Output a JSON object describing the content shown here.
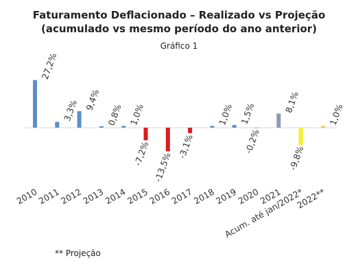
{
  "header": {
    "title_line1": "Faturamento Deflacionado – Realizado vs Projeção",
    "title_line2": "(acumulado vs mesmo período do ano anterior)",
    "subtitle": "Gráfico 1"
  },
  "footnote": "** Projeção",
  "colors": {
    "realizado": "#5b8fc7",
    "negativo": "#d91e1e",
    "ano_2021": "#8a9bb5",
    "acumulado": "#f5f02a",
    "projecao": "#e8c35a",
    "eixo": "#d9d9d9"
  },
  "chart_data": {
    "type": "bar",
    "title": "Faturamento Deflacionado – Realizado vs Projeção (acumulado vs mesmo período do ano anterior)",
    "subtitle": "Gráfico 1",
    "xlabel": "",
    "ylabel": "",
    "grid": false,
    "legend": "none",
    "categories": [
      "2010",
      "2011",
      "2012",
      "2013",
      "2014",
      "2015",
      "2016",
      "2017",
      "2018",
      "2019",
      "2020",
      "2021",
      "Acum. até jan/2022*",
      "2022**"
    ],
    "values": [
      27.2,
      3.3,
      9.4,
      0.8,
      1.0,
      -7.2,
      -13.5,
      -3.1,
      1.0,
      1.5,
      -0.2,
      8.1,
      -9.8,
      1.0
    ],
    "data_labels": [
      "27,2%",
      "3,3%",
      "9,4%",
      "0,8%",
      "1,0%",
      "-7,2%",
      "-13,5%",
      "-3,1%",
      "1,0%",
      "1,5%",
      "-0,2%",
      "8,1%",
      "-9,8%",
      "1,0%"
    ],
    "bar_colors": [
      "#5b8fc7",
      "#5b8fc7",
      "#5b8fc7",
      "#5b8fc7",
      "#5b8fc7",
      "#d91e1e",
      "#d91e1e",
      "#d91e1e",
      "#5b8fc7",
      "#5b8fc7",
      "#5b8fc7",
      "#8a9bb5",
      "#f5f02a",
      "#e8c35a"
    ],
    "ylim": [
      -15,
      28
    ]
  }
}
